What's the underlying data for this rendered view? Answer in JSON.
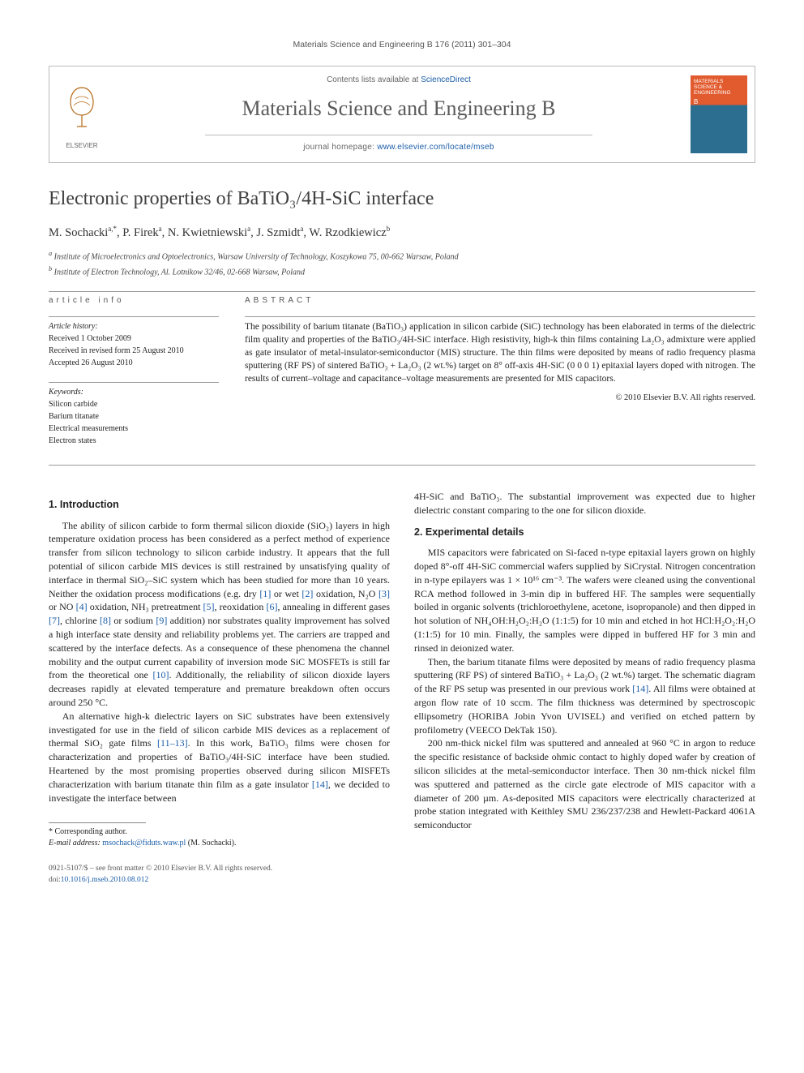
{
  "running_header": "Materials Science and Engineering B 176 (2011) 301–304",
  "masthead": {
    "contents_text": "Contents lists available at ",
    "contents_link_text": "ScienceDirect",
    "journal_title": "Materials Science and Engineering B",
    "homepage_label": "journal homepage: ",
    "homepage_url_text": "www.elsevier.com/locate/mseb",
    "publisher": "ELSEVIER",
    "cover_top": "MATERIALS SCIENCE & ENGINEERING",
    "cover_sub": "B"
  },
  "article_title": "Electronic properties of BaTiO₃/4H-SiC interface",
  "authors_html": "M. Sochacki",
  "authors": [
    {
      "name": "M. Sochacki",
      "marks": "a,*"
    },
    {
      "name": "P. Firek",
      "marks": "a"
    },
    {
      "name": "N. Kwietniewski",
      "marks": "a"
    },
    {
      "name": "J. Szmidt",
      "marks": "a"
    },
    {
      "name": "W. Rzodkiewicz",
      "marks": "b"
    }
  ],
  "affiliations": [
    {
      "mark": "a",
      "text": "Institute of Microelectronics and Optoelectronics, Warsaw University of Technology, Koszykowa 75, 00-662 Warsaw, Poland"
    },
    {
      "mark": "b",
      "text": "Institute of Electron Technology, Al. Lotnikow 32/46, 02-668 Warsaw, Poland"
    }
  ],
  "article_info": {
    "heading": "article info",
    "history_label": "Article history:",
    "received": "Received 1 October 2009",
    "revised": "Received in revised form 25 August 2010",
    "accepted": "Accepted 26 August 2010",
    "keywords_label": "Keywords:",
    "keywords": [
      "Silicon carbide",
      "Barium titanate",
      "Electrical measurements",
      "Electron states"
    ]
  },
  "abstract": {
    "heading": "abstract",
    "text": "The possibility of barium titanate (BaTiO₃) application in silicon carbide (SiC) technology has been elaborated in terms of the dielectric film quality and properties of the BaTiO₃/4H-SiC interface. High resistivity, high-k thin films containing La₂O₃ admixture were applied as gate insulator of metal-insulator-semiconductor (MIS) structure. The thin films were deposited by means of radio frequency plasma sputtering (RF PS) of sintered BaTiO₃ + La₂O₃ (2 wt.%) target on 8° off-axis 4H-SiC (0 0 0 1) epitaxial layers doped with nitrogen. The results of current–voltage and capacitance–voltage measurements are presented for MIS capacitors.",
    "copyright": "© 2010 Elsevier B.V. All rights reserved."
  },
  "sections": {
    "s1_title": "1. Introduction",
    "s1_p1": "The ability of silicon carbide to form thermal silicon dioxide (SiO₂) layers in high temperature oxidation process has been considered as a perfect method of experience transfer from silicon technology to silicon carbide industry. It appears that the full potential of silicon carbide MIS devices is still restrained by unsatisfying quality of interface in thermal SiO₂–SiC system which has been studied for more than 10 years. Neither the oxidation process modifications (e.g. dry [1] or wet [2] oxidation, N₂O [3] or NO [4] oxidation, NH₃ pretreatment [5], reoxidation [6], annealing in different gases [7], chlorine [8] or sodium [9] addition) nor substrates quality improvement has solved a high interface state density and reliability problems yet. The carriers are trapped and scattered by the interface defects. As a consequence of these phenomena the channel mobility and the output current capability of inversion mode SiC MOSFETs is still far from the theoretical one [10]. Additionally, the reliability of silicon dioxide layers decreases rapidly at elevated temperature and premature breakdown often occurs around 250 °C.",
    "s1_p2": "An alternative high-k dielectric layers on SiC substrates have been extensively investigated for use in the field of silicon carbide MIS devices as a replacement of thermal SiO₂ gate films [11–13]. In this work, BaTiO₃ films were chosen for characterization and properties of BaTiO₃/4H-SiC interface have been studied. Heartened by the most promising properties observed during silicon MISFETs characterization with barium titanate thin film as a gate insulator [14], we decided to investigate the interface between 4H-SiC and BaTiO₃. The substantial improvement was expected due to higher dielectric constant comparing to the one for silicon dioxide.",
    "s2_title": "2. Experimental details",
    "s2_p1": "MIS capacitors were fabricated on Si-faced n-type epitaxial layers grown on highly doped 8°-off 4H-SiC commercial wafers supplied by SiCrystal. Nitrogen concentration in n-type epilayers was 1 × 10¹⁶ cm⁻³. The wafers were cleaned using the conventional RCA method followed in 3-min dip in buffered HF. The samples were sequentially boiled in organic solvents (trichloroethylene, acetone, isopropanole) and then dipped in hot solution of NH₄OH:H₂O₂:H₂O (1:1:5) for 10 min and etched in hot HCl:H₂O₂:H₂O (1:1:5) for 10 min. Finally, the samples were dipped in buffered HF for 3 min and rinsed in deionized water.",
    "s2_p2": "Then, the barium titanate films were deposited by means of radio frequency plasma sputtering (RF PS) of sintered BaTiO₃ + La₂O₃ (2 wt.%) target. The schematic diagram of the RF PS setup was presented in our previous work [14]. All films were obtained at argon flow rate of 10 sccm. The film thickness was determined by spectroscopic ellipsometry (HORIBA Jobin Yvon UVISEL) and verified on etched pattern by profilometry (VEECO DekTak 150).",
    "s2_p3": "200 nm-thick nickel film was sputtered and annealed at 960 °C in argon to reduce the specific resistance of backside ohmic contact to highly doped wafer by creation of silicon silicides at the metal-semiconductor interface. Then 30 nm-thick nickel film was sputtered and patterned as the circle gate electrode of MIS capacitor with a diameter of 200 µm. As-deposited MIS capacitors were electrically characterized at probe station integrated with Keithley SMU 236/237/238 and Hewlett-Packard 4061A semiconductor"
  },
  "footnotes": {
    "corr_label": "* Corresponding author.",
    "email_label": "E-mail address: ",
    "email": "msochack@fiduts.waw.pl",
    "email_person": " (M. Sochacki)."
  },
  "bottom": {
    "issn_line": "0921-5107/$ – see front matter © 2010 Elsevier B.V. All rights reserved.",
    "doi_label": "doi:",
    "doi": "10.1016/j.mseb.2010.08.012"
  },
  "colors": {
    "link": "#1a5ca8",
    "text": "#222222",
    "muted": "#555555",
    "rule": "#999999",
    "cover_orange": "#e25b2e",
    "cover_blue": "#2c6e8f"
  }
}
